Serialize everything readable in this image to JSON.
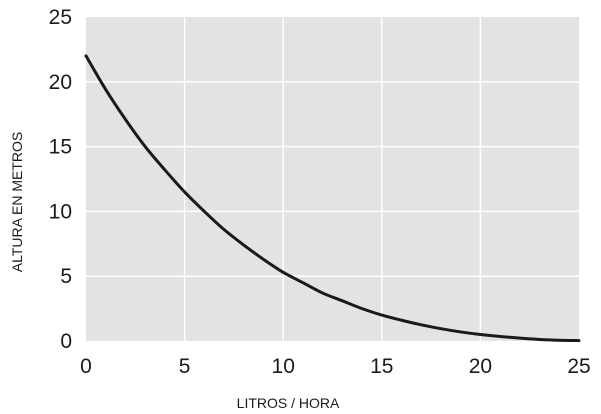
{
  "chart_data": {
    "type": "line",
    "xlabel": "LITROS / HORA",
    "ylabel": "ALTURA EN METROS",
    "xlim": [
      0,
      25
    ],
    "ylim": [
      0,
      25
    ],
    "x_ticks": [
      0,
      5,
      10,
      15,
      20,
      25
    ],
    "y_ticks": [
      0,
      5,
      10,
      15,
      20,
      25
    ],
    "x_tick_labels": [
      "0",
      "5",
      "10",
      "15",
      "20",
      "25"
    ],
    "y_tick_labels": [
      "0",
      "5",
      "10",
      "15",
      "20",
      "25"
    ],
    "grid": true,
    "colors": {
      "plot_background": "#e3e3e3",
      "grid": "#ffffff",
      "line": "#1a1a1a"
    },
    "series": [
      {
        "x": [
          0,
          1,
          2,
          3,
          4,
          5,
          6,
          7,
          8,
          9,
          10,
          11,
          12,
          13,
          14,
          15,
          16,
          17,
          18,
          19,
          20,
          21,
          22,
          23,
          24,
          25
        ],
        "y": [
          22.0,
          19.4,
          17.1,
          15.0,
          13.2,
          11.5,
          10.0,
          8.6,
          7.4,
          6.3,
          5.3,
          4.5,
          3.7,
          3.1,
          2.5,
          2.0,
          1.6,
          1.25,
          0.95,
          0.7,
          0.5,
          0.35,
          0.22,
          0.12,
          0.06,
          0.03
        ]
      }
    ]
  }
}
